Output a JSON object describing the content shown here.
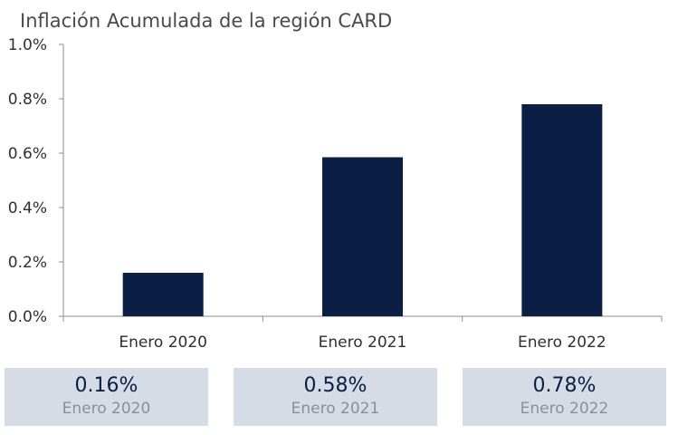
{
  "chart_data": {
    "type": "bar",
    "title": "Inflación Acumulada de la región CARD",
    "xlabel": "",
    "ylabel": "",
    "categories": [
      "Enero 2020",
      "Enero 2021",
      "Enero 2022"
    ],
    "values": [
      0.16,
      0.585,
      0.78
    ],
    "y_unit": "%",
    "ylim": [
      0,
      1.0
    ],
    "yticks": [
      "0.0%",
      "0.2%",
      "0.4%",
      "0.6%",
      "0.8%",
      "1.0%"
    ],
    "grid": false,
    "bar_color": "#0b1f44"
  },
  "summary": {
    "items": [
      {
        "value": "0.16%",
        "period": "Enero 2020"
      },
      {
        "value": "0.58%",
        "period": "Enero 2021"
      },
      {
        "value": "0.78%",
        "period": "Enero 2022"
      }
    ],
    "box_color": "#d5dce5",
    "value_color": "#0b1f44",
    "period_color": "#8a8f96"
  }
}
